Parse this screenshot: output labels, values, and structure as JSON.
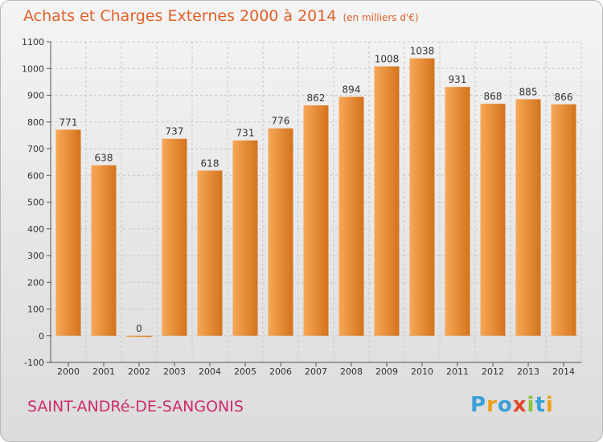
{
  "header": {
    "title": "Achats et Charges Externes 2000 à 2014",
    "subtitle": "(en milliers d'€)"
  },
  "footer": {
    "city": "SAINT-ANDRé-DE-SANGONIS",
    "logo": [
      "P",
      "r",
      "o",
      "x",
      "i",
      "t",
      "i"
    ]
  },
  "colors": {
    "title": "#e0612a",
    "city": "#cc2b6e",
    "bar_light": "#f6a857",
    "bar_dark": "#d4731c",
    "grid": "#c8c8c8"
  },
  "chart_data": {
    "type": "bar",
    "title": "Achats et Charges Externes 2000 à 2014",
    "subtitle": "(en milliers d'€)",
    "categories": [
      "2000",
      "2001",
      "2002",
      "2003",
      "2004",
      "2005",
      "2006",
      "2007",
      "2008",
      "2009",
      "2010",
      "2011",
      "2012",
      "2013",
      "2014"
    ],
    "values": [
      771,
      638,
      0,
      737,
      618,
      731,
      776,
      862,
      894,
      1008,
      1038,
      931,
      868,
      885,
      866
    ],
    "ylim": [
      -100,
      1100
    ],
    "yticks": [
      -100,
      0,
      100,
      200,
      300,
      400,
      500,
      600,
      700,
      800,
      900,
      1000,
      1100
    ],
    "grid": true,
    "xlabel": "",
    "ylabel": ""
  }
}
